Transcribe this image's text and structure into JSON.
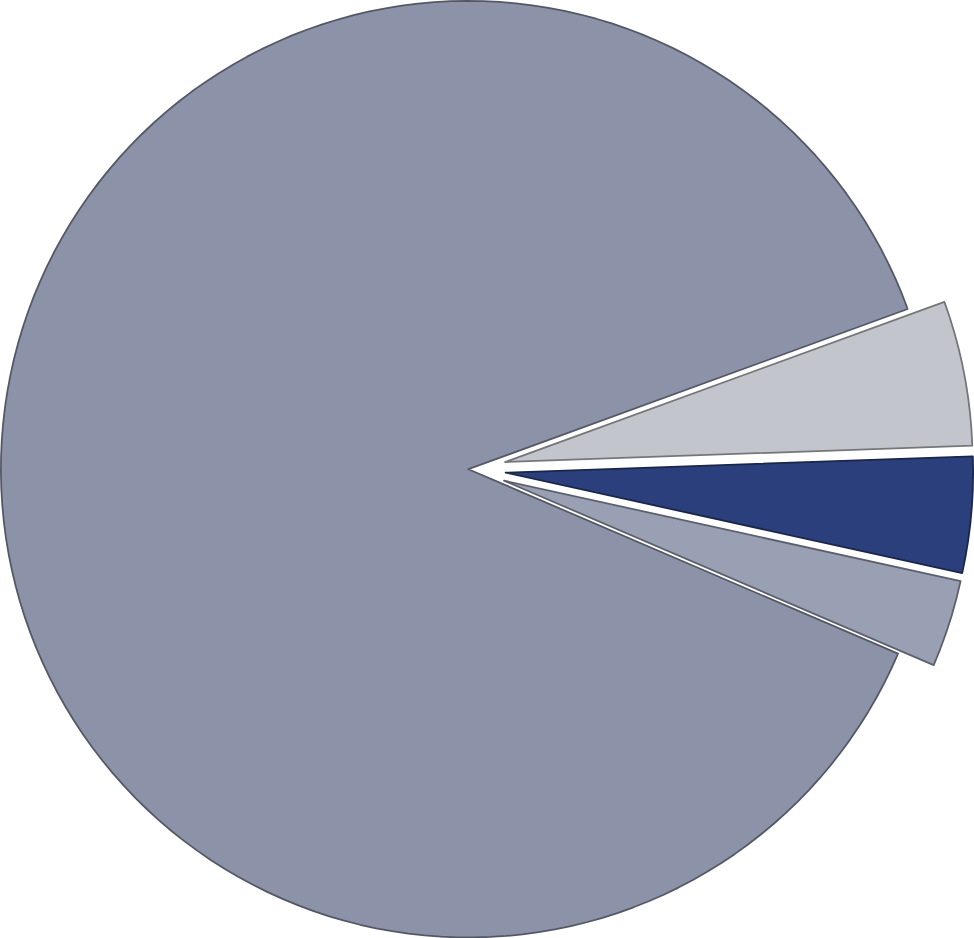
{
  "chart_data": {
    "type": "pie",
    "categories": [
      null,
      null,
      null,
      null
    ],
    "values": [
      88,
      3,
      4,
      5
    ],
    "colors": [
      "#8c92a8",
      "#9aa0b4",
      "#2b3f7c",
      "#c2c5cc"
    ]
  }
}
